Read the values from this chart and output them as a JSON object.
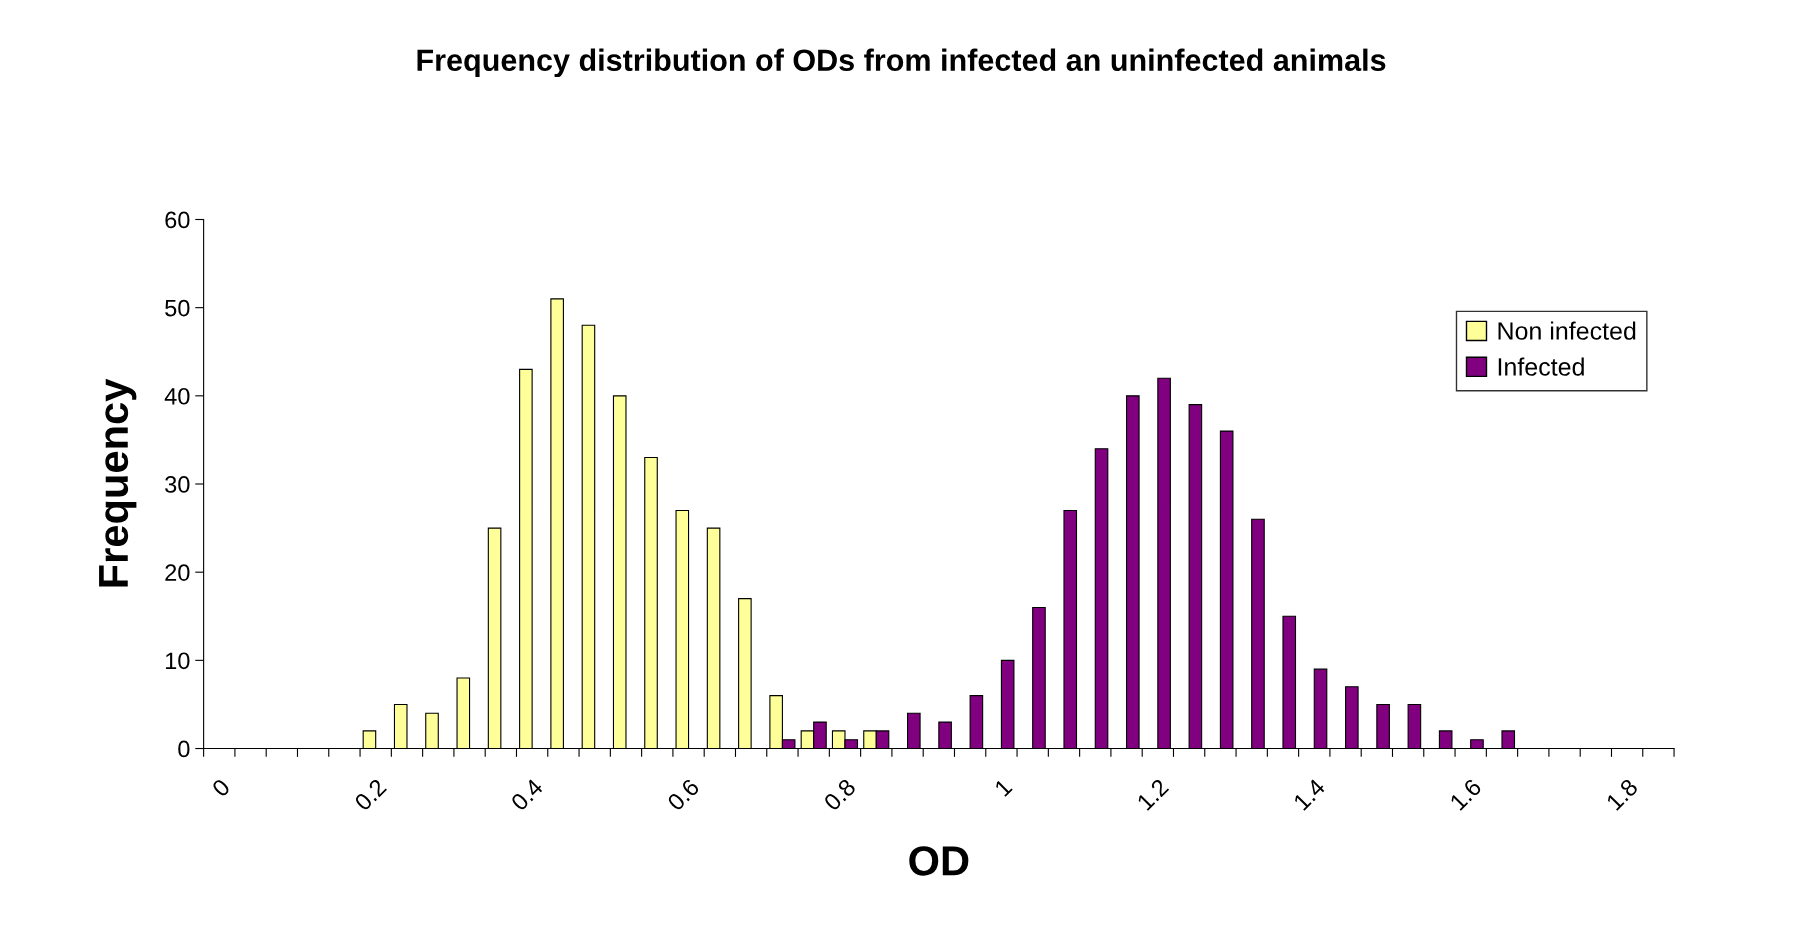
{
  "chart_data": {
    "type": "bar",
    "title": "Frequency distribution of ODs from infected an uninfected animals",
    "xlabel": "OD",
    "ylabel": "Frequency",
    "categories": [
      "0",
      null,
      null,
      null,
      null,
      "0.2",
      null,
      null,
      null,
      null,
      "0.4",
      null,
      null,
      null,
      null,
      "0.6",
      null,
      null,
      null,
      null,
      "0.8",
      null,
      null,
      null,
      null,
      "1",
      null,
      null,
      null,
      null,
      "1.2",
      null,
      null,
      null,
      null,
      "1.4",
      null,
      null,
      null,
      null,
      "1.6",
      null,
      null,
      null,
      null,
      "1.8",
      null
    ],
    "series": [
      {
        "name": "Non infected",
        "color": "#ffff99",
        "values": [
          null,
          null,
          null,
          null,
          null,
          2,
          5,
          4,
          8,
          25,
          43,
          51,
          48,
          40,
          33,
          27,
          25,
          17,
          6,
          2,
          2,
          2,
          null,
          null,
          null,
          null,
          null,
          null,
          null,
          null,
          null,
          null,
          null,
          null,
          null,
          null,
          null,
          null,
          null,
          null,
          null,
          null,
          null,
          null,
          null,
          null,
          null
        ]
      },
      {
        "name": "Infected",
        "color": "#800080",
        "values": [
          null,
          null,
          null,
          null,
          null,
          null,
          null,
          null,
          null,
          null,
          null,
          null,
          null,
          null,
          null,
          null,
          null,
          null,
          1,
          3,
          1,
          2,
          4,
          3,
          6,
          10,
          16,
          27,
          34,
          40,
          42,
          39,
          36,
          26,
          15,
          9,
          7,
          5,
          5,
          2,
          1,
          2,
          null,
          null,
          null,
          null,
          null
        ]
      }
    ],
    "ylim": [
      0,
      60
    ],
    "yticks": [
      0,
      10,
      20,
      30,
      40,
      50,
      60
    ],
    "grid": false,
    "legend": "top right"
  }
}
